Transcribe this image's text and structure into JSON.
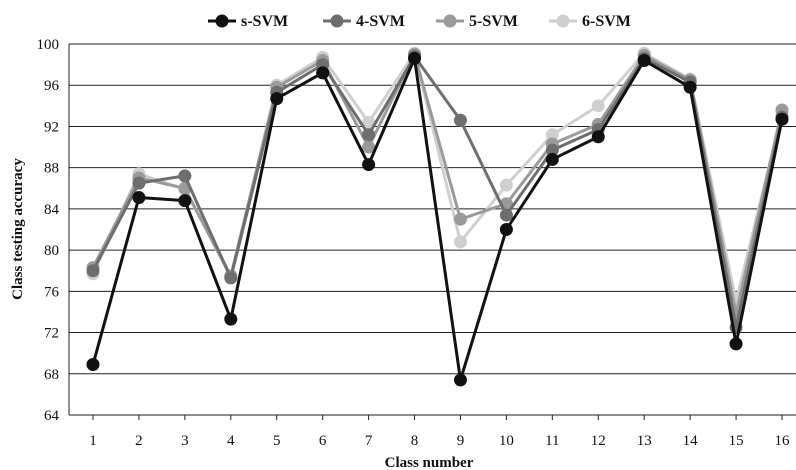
{
  "chart_data": {
    "type": "line",
    "xlabel": "Class number",
    "ylabel": "Class testing accuracy",
    "ylim": [
      64,
      100
    ],
    "yticks": [
      64,
      68,
      72,
      76,
      80,
      84,
      88,
      92,
      96,
      100
    ],
    "categories": [
      "1",
      "2",
      "3",
      "4",
      "5",
      "6",
      "7",
      "8",
      "9",
      "10",
      "11",
      "12",
      "13",
      "14",
      "15",
      "16"
    ],
    "grid": "horizontal",
    "legend_position": "top-center",
    "series": [
      {
        "name": "s-SVM",
        "color": "#111111",
        "values": [
          68.9,
          85.1,
          84.8,
          73.3,
          94.7,
          97.2,
          88.3,
          98.6,
          67.4,
          82.0,
          88.8,
          91.0,
          98.4,
          95.8,
          70.9,
          92.7
        ]
      },
      {
        "name": "4-SVM",
        "color": "#6e6e6e",
        "values": [
          78.0,
          86.5,
          87.2,
          77.3,
          95.3,
          98.0,
          91.2,
          98.8,
          92.6,
          83.4,
          89.7,
          91.7,
          98.6,
          96.3,
          72.5,
          92.9
        ]
      },
      {
        "name": "5-SVM",
        "color": "#9a9a9a",
        "values": [
          78.3,
          87.0,
          86.0,
          77.5,
          95.8,
          98.4,
          90.0,
          99.0,
          83.0,
          84.5,
          90.3,
          92.2,
          98.9,
          96.5,
          73.8,
          93.6
        ]
      },
      {
        "name": "6-SVM",
        "color": "#cfcfcf",
        "values": [
          77.7,
          87.4,
          85.9,
          77.4,
          96.0,
          98.7,
          92.4,
          99.1,
          80.8,
          86.3,
          91.2,
          94.0,
          99.1,
          96.6,
          75.0,
          93.3
        ]
      }
    ]
  }
}
